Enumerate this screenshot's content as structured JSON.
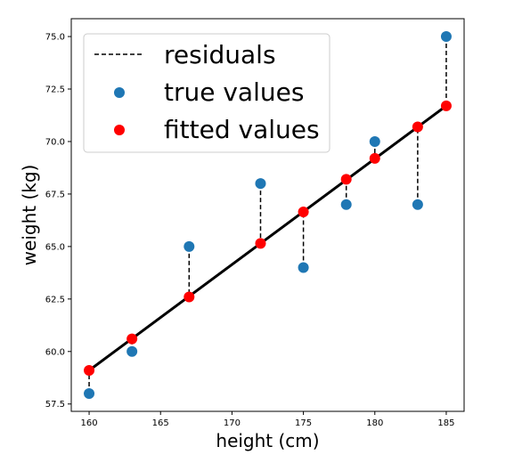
{
  "chart_data": {
    "type": "scatter",
    "xlabel": "height (cm)",
    "ylabel": "weight (kg)",
    "xlim": [
      158.75,
      186.25
    ],
    "ylim": [
      57.15,
      75.85
    ],
    "x_ticks": [
      160,
      165,
      170,
      175,
      180,
      185
    ],
    "x_tick_labels": [
      "160",
      "165",
      "170",
      "175",
      "180",
      "185"
    ],
    "y_ticks": [
      57.5,
      60.0,
      62.5,
      65.0,
      67.5,
      70.0,
      72.5,
      75.0
    ],
    "y_tick_labels": [
      "57.5",
      "60.0",
      "62.5",
      "65.0",
      "67.5",
      "70.0",
      "72.5",
      "75.0"
    ],
    "grid": false,
    "legend": {
      "placement": "top-left",
      "entries": [
        "residuals",
        "true values",
        "fitted values"
      ]
    },
    "x": [
      160,
      163,
      167,
      172,
      175,
      178,
      180,
      183,
      185
    ],
    "series": [
      {
        "name": "true values",
        "marker": "circle",
        "color": "#1f77b4",
        "values": [
          58.0,
          60.0,
          65.0,
          68.0,
          64.0,
          67.0,
          70.0,
          67.0,
          75.0
        ]
      },
      {
        "name": "fitted values",
        "marker": "circle",
        "color": "#ff0000",
        "values": [
          59.1,
          60.6,
          62.6,
          65.15,
          66.65,
          68.2,
          69.2,
          70.7,
          71.7
        ]
      }
    ],
    "regression_line": {
      "color": "#000000",
      "x": [
        160,
        185
      ],
      "y": [
        59.1,
        71.7
      ]
    },
    "residuals": {
      "name": "residuals",
      "style": "dashed",
      "color": "#000000"
    }
  }
}
